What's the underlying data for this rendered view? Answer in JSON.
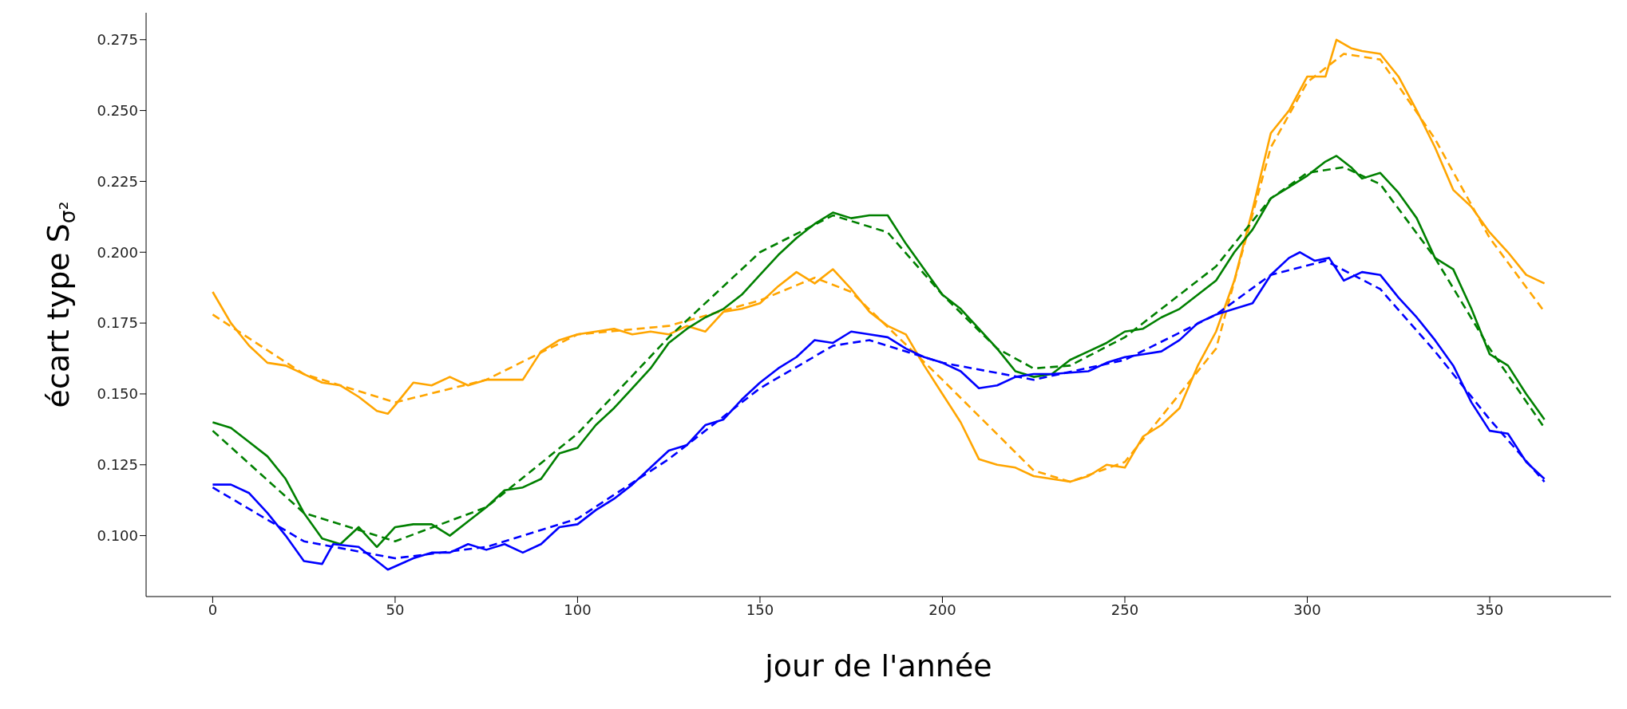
{
  "chart_data": {
    "type": "line",
    "xlabel": "jour de l'année",
    "ylabel": "écart type S$_{σ²}$",
    "xlim": [
      -18.25,
      383.25
    ],
    "ylim": [
      0.0785,
      0.2845
    ],
    "xticks": [
      0,
      50,
      100,
      150,
      200,
      250,
      300,
      350
    ],
    "yticks": [
      {
        "value": 0.1,
        "label": "0.100"
      },
      {
        "value": 0.125,
        "label": "0.125"
      },
      {
        "value": 0.15,
        "label": "0.150"
      },
      {
        "value": 0.175,
        "label": "0.175"
      },
      {
        "value": 0.2,
        "label": "0.200"
      },
      {
        "value": 0.225,
        "label": "0.225"
      },
      {
        "value": 0.25,
        "label": "0.250"
      },
      {
        "value": 0.275,
        "label": "0.275"
      }
    ],
    "grid": false,
    "legend": false,
    "marker": "none",
    "series": [
      {
        "color": "#ffa500",
        "line_style": "solid",
        "x": [
          0,
          5,
          10,
          15,
          20,
          25,
          30,
          35,
          40,
          45,
          48,
          50,
          55,
          60,
          65,
          70,
          75,
          80,
          85,
          90,
          95,
          100,
          105,
          110,
          115,
          120,
          125,
          130,
          135,
          140,
          145,
          150,
          155,
          160,
          165,
          170,
          175,
          180,
          185,
          190,
          195,
          200,
          205,
          210,
          215,
          220,
          225,
          230,
          235,
          240,
          245,
          250,
          255,
          260,
          265,
          270,
          275,
          280,
          285,
          290,
          295,
          300,
          305,
          308,
          312,
          315,
          320,
          325,
          330,
          335,
          340,
          345,
          350,
          355,
          360,
          365
        ],
        "values": [
          0.186,
          0.175,
          0.167,
          0.161,
          0.16,
          0.157,
          0.154,
          0.153,
          0.149,
          0.144,
          0.143,
          0.146,
          0.154,
          0.153,
          0.156,
          0.153,
          0.155,
          0.155,
          0.155,
          0.165,
          0.169,
          0.171,
          0.172,
          0.173,
          0.171,
          0.172,
          0.171,
          0.174,
          0.172,
          0.179,
          0.18,
          0.182,
          0.188,
          0.193,
          0.189,
          0.194,
          0.187,
          0.179,
          0.174,
          0.171,
          0.16,
          0.15,
          0.14,
          0.127,
          0.125,
          0.124,
          0.121,
          0.12,
          0.119,
          0.121,
          0.125,
          0.124,
          0.135,
          0.139,
          0.145,
          0.16,
          0.172,
          0.19,
          0.215,
          0.242,
          0.25,
          0.262,
          0.262,
          0.275,
          0.272,
          0.271,
          0.27,
          0.262,
          0.25,
          0.237,
          0.222,
          0.216,
          0.207,
          0.2,
          0.192,
          0.189
        ]
      },
      {
        "color": "#ffa500",
        "line_style": "dashed",
        "x": [
          0,
          25,
          50,
          75,
          100,
          125,
          150,
          165,
          175,
          200,
          225,
          235,
          250,
          275,
          290,
          300,
          310,
          320,
          335,
          350,
          365
        ],
        "values": [
          0.178,
          0.157,
          0.147,
          0.155,
          0.171,
          0.174,
          0.183,
          0.191,
          0.186,
          0.155,
          0.123,
          0.119,
          0.126,
          0.166,
          0.237,
          0.26,
          0.27,
          0.268,
          0.24,
          0.205,
          0.179
        ]
      },
      {
        "color": "#008000",
        "line_style": "solid",
        "x": [
          0,
          5,
          10,
          15,
          20,
          25,
          30,
          35,
          40,
          45,
          50,
          55,
          60,
          65,
          70,
          75,
          80,
          85,
          90,
          95,
          100,
          105,
          110,
          115,
          120,
          125,
          130,
          135,
          140,
          145,
          150,
          155,
          160,
          165,
          170,
          175,
          180,
          185,
          190,
          195,
          200,
          205,
          210,
          215,
          220,
          225,
          230,
          235,
          240,
          245,
          250,
          255,
          260,
          265,
          270,
          275,
          280,
          285,
          290,
          295,
          300,
          305,
          308,
          312,
          315,
          320,
          325,
          330,
          335,
          340,
          345,
          350,
          355,
          360,
          365
        ],
        "values": [
          0.14,
          0.138,
          0.133,
          0.128,
          0.12,
          0.108,
          0.099,
          0.097,
          0.103,
          0.096,
          0.103,
          0.104,
          0.104,
          0.1,
          0.105,
          0.11,
          0.116,
          0.117,
          0.12,
          0.129,
          0.131,
          0.139,
          0.145,
          0.152,
          0.159,
          0.168,
          0.173,
          0.177,
          0.18,
          0.185,
          0.192,
          0.199,
          0.205,
          0.21,
          0.214,
          0.212,
          0.213,
          0.213,
          0.203,
          0.194,
          0.185,
          0.18,
          0.173,
          0.166,
          0.158,
          0.156,
          0.157,
          0.162,
          0.165,
          0.168,
          0.172,
          0.173,
          0.177,
          0.18,
          0.185,
          0.19,
          0.2,
          0.208,
          0.219,
          0.223,
          0.227,
          0.232,
          0.234,
          0.23,
          0.226,
          0.228,
          0.221,
          0.212,
          0.198,
          0.194,
          0.18,
          0.164,
          0.16,
          0.15,
          0.141
        ]
      },
      {
        "color": "#008000",
        "line_style": "dashed",
        "x": [
          0,
          25,
          50,
          75,
          100,
          125,
          150,
          170,
          185,
          200,
          215,
          225,
          235,
          250,
          275,
          290,
          300,
          310,
          320,
          335,
          350,
          365
        ],
        "values": [
          0.137,
          0.108,
          0.098,
          0.11,
          0.136,
          0.17,
          0.2,
          0.213,
          0.207,
          0.185,
          0.166,
          0.159,
          0.16,
          0.17,
          0.195,
          0.219,
          0.228,
          0.23,
          0.224,
          0.198,
          0.166,
          0.138
        ]
      },
      {
        "color": "#0000ff",
        "line_style": "solid",
        "x": [
          0,
          5,
          10,
          15,
          20,
          25,
          30,
          33,
          40,
          45,
          48,
          55,
          60,
          65,
          70,
          75,
          80,
          85,
          90,
          95,
          100,
          105,
          110,
          115,
          120,
          125,
          130,
          135,
          140,
          145,
          150,
          155,
          160,
          165,
          170,
          175,
          180,
          185,
          190,
          195,
          200,
          205,
          210,
          215,
          220,
          225,
          230,
          240,
          245,
          250,
          255,
          260,
          265,
          270,
          275,
          280,
          285,
          290,
          295,
          298,
          302,
          306,
          310,
          315,
          320,
          325,
          330,
          335,
          340,
          345,
          350,
          355,
          360,
          365
        ],
        "values": [
          0.118,
          0.118,
          0.115,
          0.108,
          0.1,
          0.091,
          0.09,
          0.097,
          0.096,
          0.091,
          0.088,
          0.092,
          0.094,
          0.094,
          0.097,
          0.095,
          0.097,
          0.094,
          0.097,
          0.103,
          0.104,
          0.109,
          0.113,
          0.118,
          0.124,
          0.13,
          0.132,
          0.139,
          0.141,
          0.148,
          0.154,
          0.159,
          0.163,
          0.169,
          0.168,
          0.172,
          0.171,
          0.17,
          0.166,
          0.163,
          0.161,
          0.158,
          0.152,
          0.153,
          0.156,
          0.157,
          0.157,
          0.158,
          0.161,
          0.163,
          0.164,
          0.165,
          0.169,
          0.175,
          0.178,
          0.18,
          0.182,
          0.192,
          0.198,
          0.2,
          0.197,
          0.198,
          0.19,
          0.193,
          0.192,
          0.184,
          0.177,
          0.169,
          0.16,
          0.147,
          0.137,
          0.136,
          0.126,
          0.12
        ]
      },
      {
        "color": "#0000ff",
        "line_style": "dashed",
        "x": [
          0,
          25,
          50,
          75,
          100,
          125,
          150,
          170,
          180,
          200,
          225,
          250,
          275,
          290,
          305,
          320,
          335,
          350,
          365
        ],
        "values": [
          0.117,
          0.098,
          0.092,
          0.096,
          0.106,
          0.127,
          0.152,
          0.167,
          0.169,
          0.161,
          0.155,
          0.162,
          0.178,
          0.192,
          0.197,
          0.187,
          0.165,
          0.141,
          0.119
        ]
      }
    ]
  }
}
